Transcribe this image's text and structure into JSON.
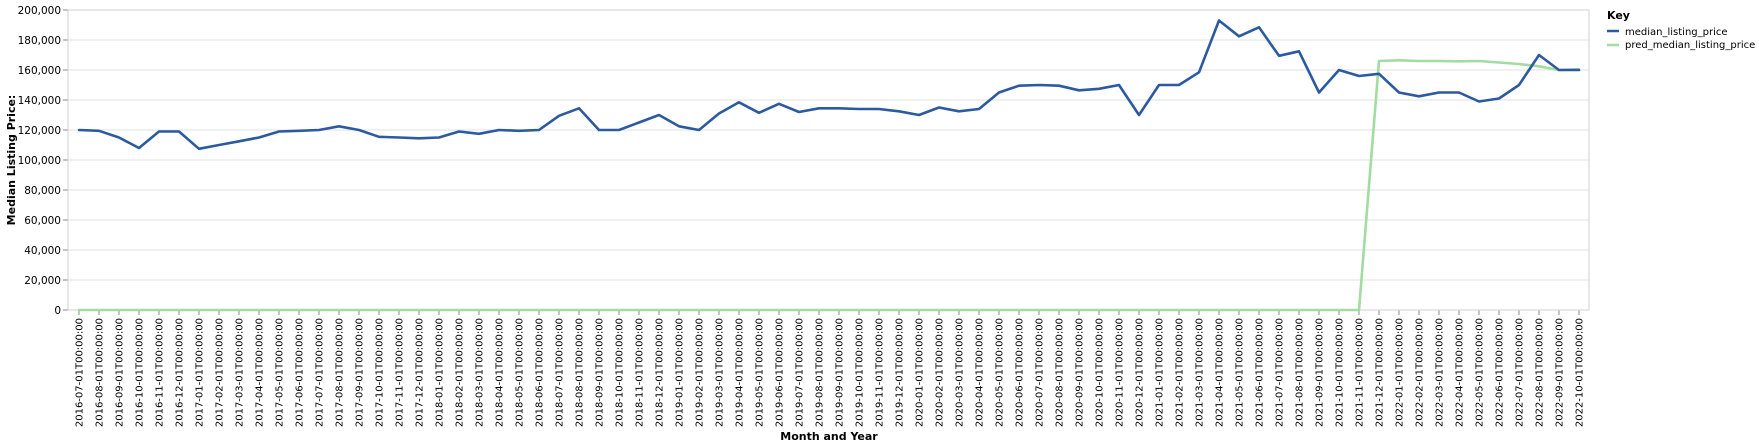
{
  "chart_data": {
    "type": "line",
    "xlabel": "Month and Year",
    "ylabel": "Median Listing Price:",
    "ylim": [
      0,
      200000
    ],
    "yticks": [
      "0",
      "20,000",
      "40,000",
      "60,000",
      "80,000",
      "100,000",
      "120,000",
      "140,000",
      "160,000",
      "180,000",
      "200,000"
    ],
    "grid": true,
    "legend": {
      "title": "Key",
      "position": "top-right"
    },
    "x": [
      "2016-07-01T00:00:00",
      "2016-08-01T00:00:00",
      "2016-09-01T00:00:00",
      "2016-10-01T00:00:00",
      "2016-11-01T00:00:00",
      "2016-12-01T00:00:00",
      "2017-01-01T00:00:00",
      "2017-02-01T00:00:00",
      "2017-03-01T00:00:00",
      "2017-04-01T00:00:00",
      "2017-05-01T00:00:00",
      "2017-06-01T00:00:00",
      "2017-07-01T00:00:00",
      "2017-08-01T00:00:00",
      "2017-09-01T00:00:00",
      "2017-10-01T00:00:00",
      "2017-11-01T00:00:00",
      "2017-12-01T00:00:00",
      "2018-01-01T00:00:00",
      "2018-02-01T00:00:00",
      "2018-03-01T00:00:00",
      "2018-04-01T00:00:00",
      "2018-05-01T00:00:00",
      "2018-06-01T00:00:00",
      "2018-07-01T00:00:00",
      "2018-08-01T00:00:00",
      "2018-09-01T00:00:00",
      "2018-10-01T00:00:00",
      "2018-11-01T00:00:00",
      "2018-12-01T00:00:00",
      "2019-01-01T00:00:00",
      "2019-02-01T00:00:00",
      "2019-03-01T00:00:00",
      "2019-04-01T00:00:00",
      "2019-05-01T00:00:00",
      "2019-06-01T00:00:00",
      "2019-07-01T00:00:00",
      "2019-08-01T00:00:00",
      "2019-09-01T00:00:00",
      "2019-10-01T00:00:00",
      "2019-11-01T00:00:00",
      "2019-12-01T00:00:00",
      "2020-01-01T00:00:00",
      "2020-02-01T00:00:00",
      "2020-03-01T00:00:00",
      "2020-04-01T00:00:00",
      "2020-05-01T00:00:00",
      "2020-06-01T00:00:00",
      "2020-07-01T00:00:00",
      "2020-08-01T00:00:00",
      "2020-09-01T00:00:00",
      "2020-10-01T00:00:00",
      "2020-11-01T00:00:00",
      "2020-12-01T00:00:00",
      "2021-01-01T00:00:00",
      "2021-02-01T00:00:00",
      "2021-03-01T00:00:00",
      "2021-04-01T00:00:00",
      "2021-05-01T00:00:00",
      "2021-06-01T00:00:00",
      "2021-07-01T00:00:00",
      "2021-08-01T00:00:00",
      "2021-09-01T00:00:00",
      "2021-10-01T00:00:00",
      "2021-11-01T00:00:00",
      "2021-12-01T00:00:00",
      "2022-01-01T00:00:00",
      "2022-02-01T00:00:00",
      "2022-03-01T00:00:00",
      "2022-04-01T00:00:00",
      "2022-05-01T00:00:00",
      "2022-06-01T00:00:00",
      "2022-07-01T00:00:00",
      "2022-08-01T00:00:00",
      "2022-09-01T00:00:00",
      "2022-10-01T00:00:00"
    ],
    "series": [
      {
        "name": "median_listing_price",
        "color": "#2c5aa0",
        "values": [
          120000,
          119500,
          115000,
          108000,
          119000,
          119000,
          107500,
          110000,
          112500,
          115000,
          119000,
          119500,
          120000,
          122500,
          120000,
          115500,
          115000,
          114500,
          115000,
          119000,
          117500,
          120000,
          119500,
          120000,
          129500,
          134500,
          120000,
          120000,
          125000,
          130000,
          122500,
          120000,
          131000,
          138500,
          131500,
          137500,
          132000,
          134500,
          134500,
          134000,
          134000,
          132500,
          130000,
          135000,
          132500,
          134000,
          145000,
          149500,
          150000,
          149500,
          146500,
          147500,
          150000,
          130000,
          150000,
          150000,
          158500,
          193000,
          182500,
          188500,
          169500,
          172500,
          145000,
          160000,
          156000,
          157500,
          145000,
          142500,
          145000,
          145000,
          139000,
          141000,
          150000,
          170000,
          160000,
          160000
        ]
      },
      {
        "name": "pred_median_listing_price",
        "color": "#a3dca0",
        "values": [
          0,
          0,
          0,
          0,
          0,
          0,
          0,
          0,
          0,
          0,
          0,
          0,
          0,
          0,
          0,
          0,
          0,
          0,
          0,
          0,
          0,
          0,
          0,
          0,
          0,
          0,
          0,
          0,
          0,
          0,
          0,
          0,
          0,
          0,
          0,
          0,
          0,
          0,
          0,
          0,
          0,
          0,
          0,
          0,
          0,
          0,
          0,
          0,
          0,
          0,
          0,
          0,
          0,
          0,
          0,
          0,
          0,
          0,
          0,
          0,
          0,
          0,
          0,
          0,
          0,
          166000,
          166500,
          166000,
          166000,
          165800,
          166000,
          165000,
          164000,
          162500,
          160000,
          160500
        ]
      }
    ]
  }
}
